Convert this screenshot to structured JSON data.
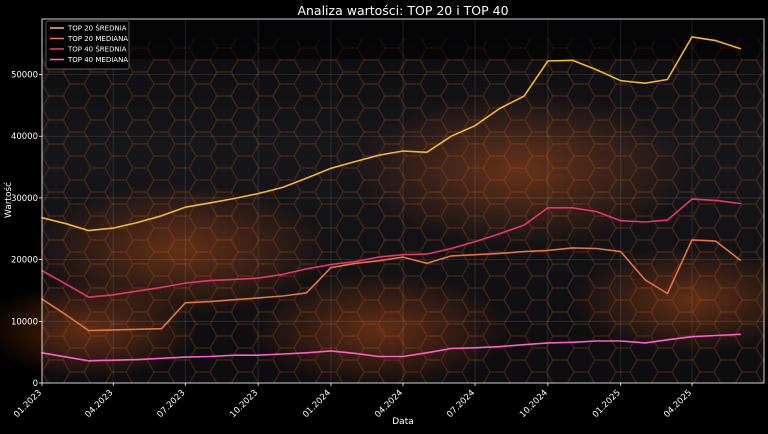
{
  "chart_data": {
    "type": "line",
    "title": "Analiza wartości: TOP 20 i TOP 40",
    "xlabel": "Data",
    "ylabel": "Wartość",
    "x_range": [
      "2023-01-01",
      "2025-07-01"
    ],
    "ylim": [
      0,
      59000
    ],
    "grid": true,
    "legend_position": "top-left",
    "x_ticks": [
      {
        "date": "2023-01-01",
        "label": "01.2023"
      },
      {
        "date": "2023-04-01",
        "label": "04.2023"
      },
      {
        "date": "2023-07-01",
        "label": "07.2023"
      },
      {
        "date": "2023-10-01",
        "label": "10.2023"
      },
      {
        "date": "2024-01-01",
        "label": "01.2024"
      },
      {
        "date": "2024-04-01",
        "label": "04.2024"
      },
      {
        "date": "2024-07-01",
        "label": "07.2024"
      },
      {
        "date": "2024-10-01",
        "label": "10.2024"
      },
      {
        "date": "2025-01-01",
        "label": "01.2025"
      },
      {
        "date": "2025-04-01",
        "label": "04.2025"
      }
    ],
    "y_ticks": [
      0,
      10000,
      20000,
      30000,
      40000,
      50000
    ],
    "series": [
      {
        "name": "TOP 20 ŚREDNIA",
        "color": "#f5b533",
        "points": [
          [
            "2023-01-01",
            26800
          ],
          [
            "2023-02-01",
            25800
          ],
          [
            "2023-03-01",
            24700
          ],
          [
            "2023-04-01",
            25100
          ],
          [
            "2023-05-01",
            26000
          ],
          [
            "2023-06-01",
            27100
          ],
          [
            "2023-07-01",
            28500
          ],
          [
            "2023-08-01",
            29200
          ],
          [
            "2023-09-01",
            29900
          ],
          [
            "2023-10-01",
            30700
          ],
          [
            "2023-11-01",
            31700
          ],
          [
            "2023-12-01",
            33200
          ],
          [
            "2024-01-01",
            34800
          ],
          [
            "2024-02-01",
            35900
          ],
          [
            "2024-03-01",
            36900
          ],
          [
            "2024-04-01",
            37600
          ],
          [
            "2024-05-01",
            37400
          ],
          [
            "2024-06-01",
            40000
          ],
          [
            "2024-07-01",
            41700
          ],
          [
            "2024-08-01",
            44500
          ],
          [
            "2024-09-01",
            46500
          ],
          [
            "2024-10-01",
            52200
          ],
          [
            "2024-11-01",
            52300
          ],
          [
            "2024-12-01",
            50800
          ],
          [
            "2025-01-01",
            49000
          ],
          [
            "2025-02-01",
            48600
          ],
          [
            "2025-03-01",
            49200
          ],
          [
            "2025-04-01",
            56100
          ],
          [
            "2025-05-01",
            55500
          ],
          [
            "2025-06-01",
            54200
          ]
        ]
      },
      {
        "name": "TOP 20 MEDIANA",
        "color": "#e8733c",
        "points": [
          [
            "2023-01-01",
            13600
          ],
          [
            "2023-02-01",
            11000
          ],
          [
            "2023-03-01",
            8500
          ],
          [
            "2023-04-01",
            8600
          ],
          [
            "2023-05-01",
            8700
          ],
          [
            "2023-06-01",
            8800
          ],
          [
            "2023-07-01",
            13000
          ],
          [
            "2023-08-01",
            13200
          ],
          [
            "2023-09-01",
            13500
          ],
          [
            "2023-10-01",
            13800
          ],
          [
            "2023-11-01",
            14100
          ],
          [
            "2023-12-01",
            14600
          ],
          [
            "2024-01-01",
            18700
          ],
          [
            "2024-02-01",
            19400
          ],
          [
            "2024-03-01",
            19800
          ],
          [
            "2024-04-01",
            20400
          ],
          [
            "2024-05-01",
            19400
          ],
          [
            "2024-06-01",
            20600
          ],
          [
            "2024-07-01",
            20800
          ],
          [
            "2024-08-01",
            21000
          ],
          [
            "2024-09-01",
            21300
          ],
          [
            "2024-10-01",
            21500
          ],
          [
            "2024-11-01",
            21900
          ],
          [
            "2024-12-01",
            21800
          ],
          [
            "2025-01-01",
            21300
          ],
          [
            "2025-02-01",
            16700
          ],
          [
            "2025-03-01",
            14500
          ],
          [
            "2025-04-01",
            23200
          ],
          [
            "2025-05-01",
            23000
          ],
          [
            "2025-06-01",
            19900
          ]
        ]
      },
      {
        "name": "TOP 40 ŚREDNIA",
        "color": "#e8366b",
        "points": [
          [
            "2023-01-01",
            18200
          ],
          [
            "2023-02-01",
            16000
          ],
          [
            "2023-03-01",
            13900
          ],
          [
            "2023-04-01",
            14300
          ],
          [
            "2023-05-01",
            14900
          ],
          [
            "2023-06-01",
            15500
          ],
          [
            "2023-07-01",
            16200
          ],
          [
            "2023-08-01",
            16600
          ],
          [
            "2023-09-01",
            16800
          ],
          [
            "2023-10-01",
            17000
          ],
          [
            "2023-11-01",
            17600
          ],
          [
            "2023-12-01",
            18500
          ],
          [
            "2024-01-01",
            19200
          ],
          [
            "2024-02-01",
            19700
          ],
          [
            "2024-03-01",
            20400
          ],
          [
            "2024-04-01",
            20800
          ],
          [
            "2024-05-01",
            20900
          ],
          [
            "2024-06-01",
            21800
          ],
          [
            "2024-07-01",
            22900
          ],
          [
            "2024-08-01",
            24200
          ],
          [
            "2024-09-01",
            25600
          ],
          [
            "2024-10-01",
            28400
          ],
          [
            "2024-11-01",
            28400
          ],
          [
            "2024-12-01",
            27800
          ],
          [
            "2025-01-01",
            26300
          ],
          [
            "2025-02-01",
            26100
          ],
          [
            "2025-03-01",
            26400
          ],
          [
            "2025-04-01",
            29800
          ],
          [
            "2025-05-01",
            29600
          ],
          [
            "2025-06-01",
            29100
          ]
        ]
      },
      {
        "name": "TOP 40 MEDIANA",
        "color": "#ff5fc8",
        "points": [
          [
            "2023-01-01",
            4900
          ],
          [
            "2023-02-01",
            4200
          ],
          [
            "2023-03-01",
            3600
          ],
          [
            "2023-04-01",
            3700
          ],
          [
            "2023-05-01",
            3800
          ],
          [
            "2023-06-01",
            4000
          ],
          [
            "2023-07-01",
            4200
          ],
          [
            "2023-08-01",
            4300
          ],
          [
            "2023-09-01",
            4500
          ],
          [
            "2023-10-01",
            4500
          ],
          [
            "2023-11-01",
            4700
          ],
          [
            "2023-12-01",
            4900
          ],
          [
            "2024-01-01",
            5200
          ],
          [
            "2024-02-01",
            4800
          ],
          [
            "2024-03-01",
            4300
          ],
          [
            "2024-04-01",
            4300
          ],
          [
            "2024-05-01",
            4900
          ],
          [
            "2024-06-01",
            5600
          ],
          [
            "2024-07-01",
            5700
          ],
          [
            "2024-08-01",
            5900
          ],
          [
            "2024-09-01",
            6200
          ],
          [
            "2024-10-01",
            6500
          ],
          [
            "2024-11-01",
            6600
          ],
          [
            "2024-12-01",
            6800
          ],
          [
            "2025-01-01",
            6800
          ],
          [
            "2025-02-01",
            6500
          ],
          [
            "2025-03-01",
            7000
          ],
          [
            "2025-04-01",
            7500
          ],
          [
            "2025-05-01",
            7700
          ],
          [
            "2025-06-01",
            7900
          ]
        ]
      }
    ]
  }
}
